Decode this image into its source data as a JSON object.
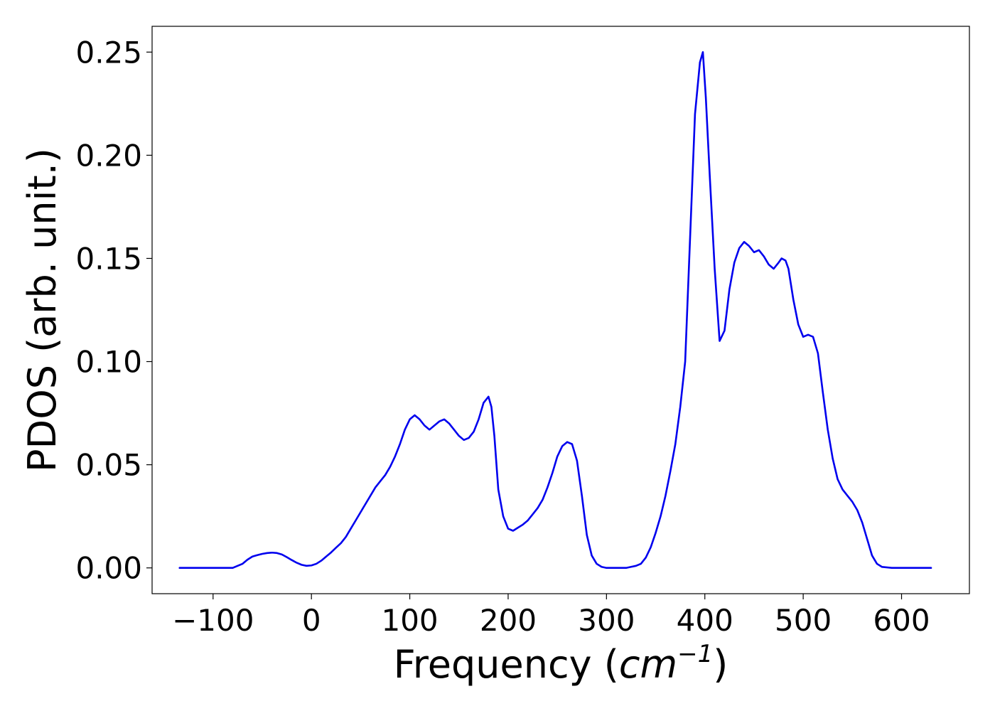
{
  "chart_data": {
    "type": "line",
    "title": "",
    "xlabel_prefix": "Frequency (",
    "xlabel_unit": "cm",
    "xlabel_exp": "−1",
    "xlabel_suffix": ")",
    "ylabel": "PDOS (arb. unit.)",
    "xlim": [
      -162,
      669
    ],
    "ylim": [
      -0.0125,
      0.2625
    ],
    "xticks": [
      -100,
      0,
      100,
      200,
      300,
      400,
      500,
      600
    ],
    "xtick_labels": [
      "−100",
      "0",
      "100",
      "200",
      "300",
      "400",
      "500",
      "600"
    ],
    "yticks": [
      0.0,
      0.05,
      0.1,
      0.15,
      0.2,
      0.25
    ],
    "ytick_labels": [
      "0.00",
      "0.05",
      "0.10",
      "0.15",
      "0.20",
      "0.25"
    ],
    "grid": false,
    "legend": "none",
    "series": [
      {
        "color": "#0000ee",
        "x": [
          -134,
          -120,
          -100,
          -90,
          -80,
          -75,
          -70,
          -65,
          -60,
          -55,
          -50,
          -45,
          -40,
          -35,
          -30,
          -25,
          -20,
          -15,
          -10,
          -5,
          0,
          5,
          10,
          15,
          20,
          25,
          30,
          35,
          40,
          45,
          50,
          55,
          60,
          65,
          70,
          75,
          80,
          85,
          90,
          95,
          100,
          105,
          110,
          115,
          120,
          125,
          130,
          135,
          140,
          145,
          150,
          155,
          160,
          165,
          170,
          175,
          180,
          183,
          186,
          190,
          195,
          200,
          205,
          210,
          215,
          220,
          225,
          230,
          235,
          240,
          245,
          250,
          255,
          260,
          265,
          270,
          275,
          280,
          285,
          290,
          295,
          300,
          310,
          320,
          330,
          335,
          340,
          345,
          350,
          355,
          360,
          365,
          370,
          375,
          380,
          385,
          390,
          395,
          398,
          401,
          405,
          410,
          415,
          420,
          425,
          430,
          435,
          440,
          445,
          450,
          455,
          460,
          465,
          470,
          475,
          478,
          482,
          485,
          490,
          495,
          500,
          505,
          510,
          515,
          520,
          525,
          530,
          535,
          540,
          545,
          550,
          555,
          560,
          565,
          570,
          575,
          580,
          590,
          600,
          630
        ],
        "y": [
          0,
          0,
          0,
          0,
          0,
          0.001,
          0.002,
          0.004,
          0.0055,
          0.0062,
          0.0068,
          0.0072,
          0.0074,
          0.0072,
          0.0065,
          0.0052,
          0.0038,
          0.0025,
          0.0015,
          0.001,
          0.0012,
          0.002,
          0.0035,
          0.0055,
          0.0075,
          0.0098,
          0.012,
          0.015,
          0.019,
          0.023,
          0.027,
          0.031,
          0.035,
          0.039,
          0.042,
          0.045,
          0.049,
          0.054,
          0.06,
          0.067,
          0.072,
          0.074,
          0.072,
          0.069,
          0.067,
          0.069,
          0.071,
          0.072,
          0.07,
          0.067,
          0.064,
          0.062,
          0.063,
          0.066,
          0.072,
          0.08,
          0.083,
          0.078,
          0.064,
          0.038,
          0.025,
          0.019,
          0.018,
          0.0195,
          0.021,
          0.023,
          0.026,
          0.029,
          0.033,
          0.039,
          0.046,
          0.054,
          0.059,
          0.061,
          0.06,
          0.052,
          0.035,
          0.016,
          0.006,
          0.002,
          0.0005,
          0,
          0,
          0,
          0.001,
          0.002,
          0.005,
          0.01,
          0.017,
          0.025,
          0.035,
          0.047,
          0.06,
          0.078,
          0.1,
          0.16,
          0.22,
          0.245,
          0.25,
          0.228,
          0.19,
          0.145,
          0.11,
          0.115,
          0.135,
          0.148,
          0.155,
          0.158,
          0.156,
          0.153,
          0.154,
          0.151,
          0.147,
          0.145,
          0.148,
          0.15,
          0.149,
          0.145,
          0.13,
          0.118,
          0.112,
          0.113,
          0.112,
          0.104,
          0.085,
          0.067,
          0.053,
          0.043,
          0.038,
          0.035,
          0.032,
          0.028,
          0.022,
          0.014,
          0.006,
          0.002,
          0.0005,
          0,
          0,
          0
        ]
      }
    ]
  }
}
